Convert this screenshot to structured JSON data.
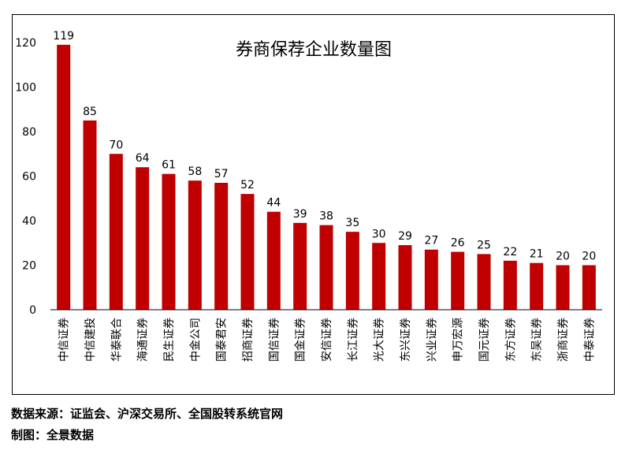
{
  "footer": {
    "source": "数据来源：证监会、沪深交易所、全国股转系统官网",
    "credit": "制图：全景数据"
  },
  "colors": {
    "bar": "#C00000",
    "axis": "#000000",
    "frame": "#000000"
  },
  "chart_data": {
    "type": "bar",
    "title": "券商保荐企业数量图",
    "categories": [
      "中信证券",
      "中信建投",
      "华泰联合",
      "海通证券",
      "民生证券",
      "中金公司",
      "国泰君安",
      "招商证券",
      "国信证券",
      "国金证券",
      "安信证券",
      "长江证券",
      "光大证券",
      "东兴证券",
      "兴业证券",
      "申万宏源",
      "国元证券",
      "东方证券",
      "东吴证券",
      "浙商证券",
      "中泰证券"
    ],
    "values": [
      119,
      85,
      70,
      64,
      61,
      58,
      57,
      52,
      44,
      39,
      38,
      35,
      30,
      29,
      27,
      26,
      25,
      22,
      21,
      20,
      20
    ],
    "ylim": [
      0,
      120
    ],
    "yticks": [
      0,
      20,
      40,
      60,
      80,
      100,
      120
    ],
    "xlabel": "",
    "ylabel": "",
    "grid": false,
    "data_labels": true
  }
}
